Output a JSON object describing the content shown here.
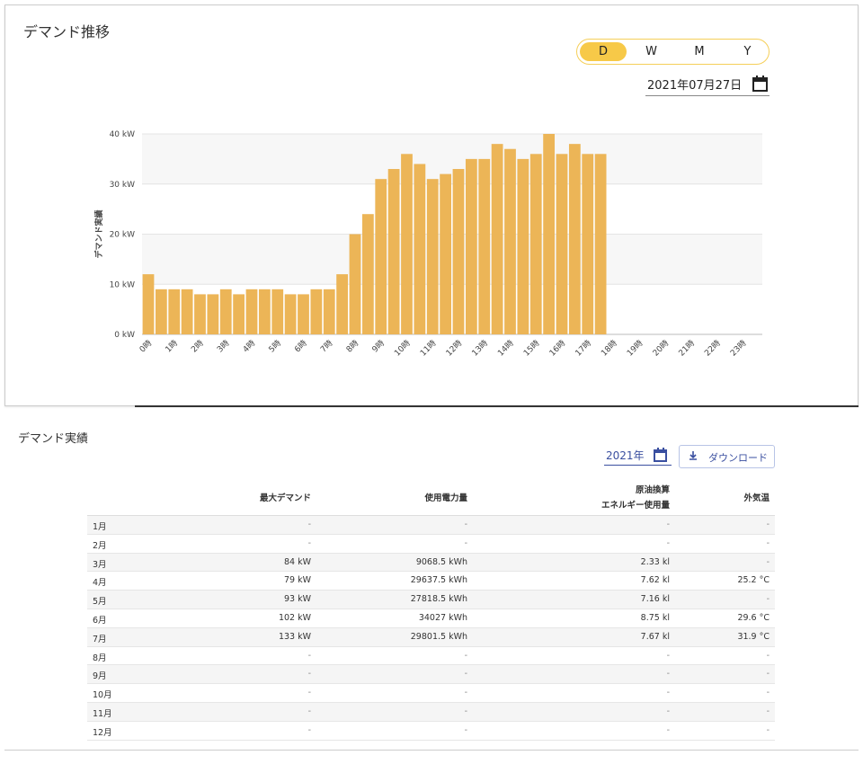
{
  "header": {
    "title": "デマンド推移",
    "periods": [
      "D",
      "W",
      "M",
      "Y"
    ],
    "selected_period": "D",
    "date": "2021年07月27日"
  },
  "chart_data": {
    "type": "bar",
    "ylabel": "デマンド実績",
    "color": "#ecb557",
    "categories": [
      "0時",
      null,
      "1時",
      null,
      "2時",
      null,
      "3時",
      null,
      "4時",
      null,
      "5時",
      null,
      "6時",
      null,
      "7時",
      null,
      "8時",
      null,
      "9時",
      null,
      "10時",
      null,
      "11時",
      null,
      "12時",
      null,
      "13時",
      null,
      "14時",
      null,
      "15時",
      null,
      "16時",
      null,
      "17時",
      null,
      "18時",
      null,
      "19時",
      null,
      "20時",
      null,
      "21時",
      null,
      "22時",
      null,
      "23時",
      null
    ],
    "values": [
      12,
      9,
      9,
      9,
      8,
      8,
      9,
      8,
      9,
      9,
      9,
      8,
      8,
      9,
      9,
      12,
      20,
      24,
      31,
      33,
      36,
      34,
      31,
      32,
      33,
      35,
      35,
      38,
      37,
      35,
      36,
      40,
      36,
      38,
      36,
      36,
      null,
      null,
      null,
      null,
      null,
      null,
      null,
      null,
      null,
      null,
      null,
      null
    ],
    "ylim": [
      0,
      40
    ],
    "yticks": [
      {
        "value": 0,
        "label": "0 kW"
      },
      {
        "value": 10,
        "label": "10 kW"
      },
      {
        "value": 20,
        "label": "20 kW"
      },
      {
        "value": 30,
        "label": "30 kW"
      },
      {
        "value": 40,
        "label": "40 kW"
      }
    ],
    "grid": true
  },
  "results": {
    "title": "デマンド実績",
    "year": "2021年",
    "download": "ダウンロード",
    "table": {
      "headers": [
        "最大デマンド",
        "使用電力量",
        [
          "原油換算",
          "エネルギー使用量"
        ],
        "外気温"
      ],
      "rows": [
        [
          "1月",
          "-",
          "-",
          "-",
          "-"
        ],
        [
          "2月",
          "-",
          "-",
          "-",
          "-"
        ],
        [
          "3月",
          "84 kW",
          "9068.5 kWh",
          "2.33 kl",
          "-"
        ],
        [
          "4月",
          "79 kW",
          "29637.5 kWh",
          "7.62 kl",
          "25.2 °C"
        ],
        [
          "5月",
          "93 kW",
          "27818.5 kWh",
          "7.16 kl",
          "-"
        ],
        [
          "6月",
          "102 kW",
          "34027 kWh",
          "8.75 kl",
          "29.6 °C"
        ],
        [
          "7月",
          "133 kW",
          "29801.5 kWh",
          "7.67 kl",
          "31.9 °C"
        ],
        [
          "8月",
          "-",
          "-",
          "-",
          "-"
        ],
        [
          "9月",
          "-",
          "-",
          "-",
          "-"
        ],
        [
          "10月",
          "-",
          "-",
          "-",
          "-"
        ],
        [
          "11月",
          "-",
          "-",
          "-",
          "-"
        ],
        [
          "12月",
          "-",
          "-",
          "-",
          "-"
        ]
      ]
    }
  }
}
